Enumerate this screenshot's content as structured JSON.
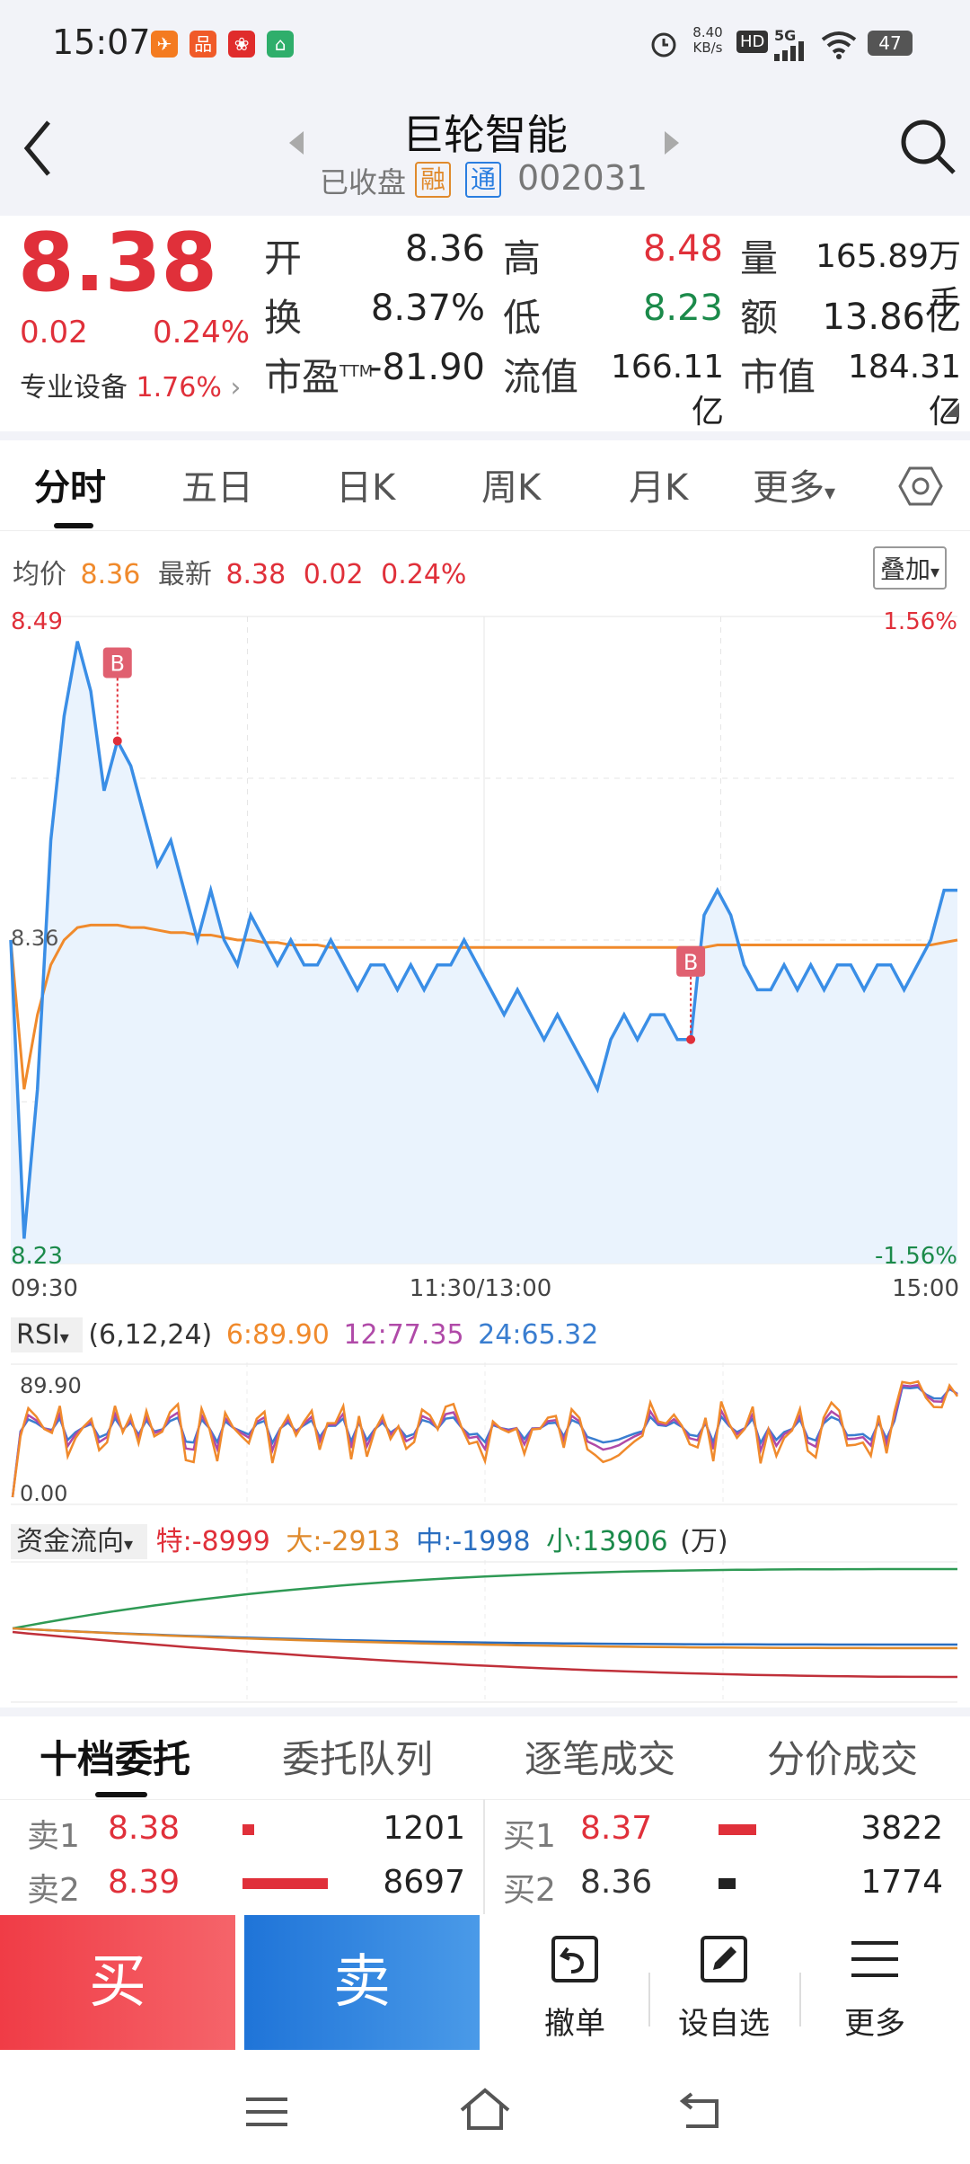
{
  "status": {
    "time": "15:07",
    "speed_value": "8.40",
    "speed_unit": "KB/s",
    "hd": "HD",
    "network": "5G",
    "battery": "47"
  },
  "header": {
    "title": "巨轮智能",
    "status": "已收盘",
    "tag_rong": "融",
    "tag_tong": "通",
    "code": "002031"
  },
  "quote": {
    "price": "8.38",
    "change": "0.02",
    "change_pct": "0.24%",
    "sector_label": "专业设备",
    "sector_pct": "1.76%",
    "fields": [
      {
        "label": "开",
        "value": "8.36"
      },
      {
        "label": "高",
        "value": "8.48"
      },
      {
        "label": "量",
        "value": "165.89万手"
      },
      {
        "label": "换",
        "value": "8.37%"
      },
      {
        "label": "低",
        "value": "8.23"
      },
      {
        "label": "额",
        "value": "13.86亿"
      },
      {
        "label": "市盈",
        "sup": "TTM",
        "value": "-81.90"
      },
      {
        "label": "流值",
        "value": "166.11亿"
      },
      {
        "label": "市值",
        "value": "184.31亿"
      }
    ]
  },
  "tabs": [
    "分时",
    "五日",
    "日K",
    "周K",
    "月K",
    "更多"
  ],
  "chart_info": {
    "avg_label": "均价",
    "avg_value": "8.36",
    "latest_label": "最新",
    "latest_value": "8.38",
    "latest_change": "0.02",
    "latest_pct": "0.24%",
    "overlay_button": "叠加"
  },
  "chart_data": [
    {
      "type": "line",
      "name_label": "intraday",
      "y_top": "8.49",
      "y_mid": "8.36",
      "y_bottom": "8.23",
      "pct_top": "1.56%",
      "pct_bottom": "-1.56%",
      "x_labels": [
        "09:30",
        "11:30/13:00",
        "15:00"
      ],
      "ylim": [
        8.23,
        8.49
      ],
      "series": [
        {
          "name": "最新",
          "color": "#3a8ee6",
          "values": [
            8.36,
            8.24,
            8.3,
            8.4,
            8.45,
            8.48,
            8.46,
            8.42,
            8.44,
            8.43,
            8.41,
            8.39,
            8.4,
            8.38,
            8.36,
            8.38,
            8.36,
            8.35,
            8.37,
            8.36,
            8.35,
            8.36,
            8.35,
            8.35,
            8.36,
            8.35,
            8.34,
            8.35,
            8.35,
            8.34,
            8.35,
            8.34,
            8.35,
            8.35,
            8.36,
            8.35,
            8.34,
            8.33,
            8.34,
            8.33,
            8.32,
            8.33,
            8.32,
            8.31,
            8.3,
            8.32,
            8.33,
            8.32,
            8.33,
            8.33,
            8.32,
            8.32,
            8.37,
            8.38,
            8.37,
            8.35,
            8.34,
            8.34,
            8.35,
            8.34,
            8.35,
            8.34,
            8.35,
            8.35,
            8.34,
            8.35,
            8.35,
            8.34,
            8.35,
            8.36,
            8.38,
            8.38
          ]
        },
        {
          "name": "均价",
          "color": "#f08a2c",
          "values": [
            8.36,
            8.3,
            8.33,
            8.35,
            8.36,
            8.365,
            8.366,
            8.366,
            8.366,
            8.365,
            8.365,
            8.364,
            8.363,
            8.363,
            8.362,
            8.362,
            8.361,
            8.36,
            8.36,
            8.359,
            8.359,
            8.358,
            8.358,
            8.358,
            8.357,
            8.357,
            8.357,
            8.357,
            8.357,
            8.357,
            8.357,
            8.357,
            8.357,
            8.357,
            8.357,
            8.357,
            8.357,
            8.357,
            8.357,
            8.357,
            8.357,
            8.357,
            8.357,
            8.357,
            8.357,
            8.357,
            8.357,
            8.357,
            8.357,
            8.357,
            8.357,
            8.357,
            8.357,
            8.358,
            8.358,
            8.358,
            8.358,
            8.358,
            8.358,
            8.358,
            8.358,
            8.358,
            8.358,
            8.358,
            8.358,
            8.358,
            8.358,
            8.358,
            8.358,
            8.358,
            8.359,
            8.36
          ]
        }
      ],
      "markers": [
        "B",
        "B"
      ]
    },
    {
      "type": "line",
      "name_label": "RSI",
      "indicator": "RSI",
      "params": "(6,12,24)",
      "rsi6": "6:89.90",
      "rsi12": "12:77.35",
      "rsi24": "24:65.32",
      "y_top": "89.90",
      "y_bottom": "0.00"
    },
    {
      "type": "line",
      "name_label": "capital-flow",
      "indicator": "资金流向",
      "te": "特:-8999",
      "da": "大:-2913",
      "zhong": "中:-1998",
      "xiao": "小:13906",
      "unit": "(万)"
    }
  ],
  "orderbook": {
    "tabs": [
      "十档委托",
      "委托队列",
      "逐笔成交",
      "分价成交"
    ],
    "sell": [
      {
        "label": "卖1",
        "price": "8.38",
        "vol": "1201",
        "bar": 0.14
      },
      {
        "label": "卖2",
        "price": "8.39",
        "vol": "8697",
        "bar": 1.0
      }
    ],
    "buy": [
      {
        "label": "买1",
        "price": "8.37",
        "vol": "3822",
        "bar": 0.44
      },
      {
        "label": "买2",
        "price": "8.36",
        "vol": "1774",
        "bar": 0.2
      }
    ]
  },
  "actions": {
    "buy": "买",
    "sell": "卖",
    "cancel": "撤单",
    "watchlist": "设自选",
    "more": "更多"
  },
  "colors": {
    "up": "#e0303a",
    "down": "#1b8a4a",
    "buy_btn": "#f04a52",
    "sell_btn": "#2a7ee0",
    "price_line": "#3a8ee6",
    "avg_line": "#f08a2c"
  }
}
